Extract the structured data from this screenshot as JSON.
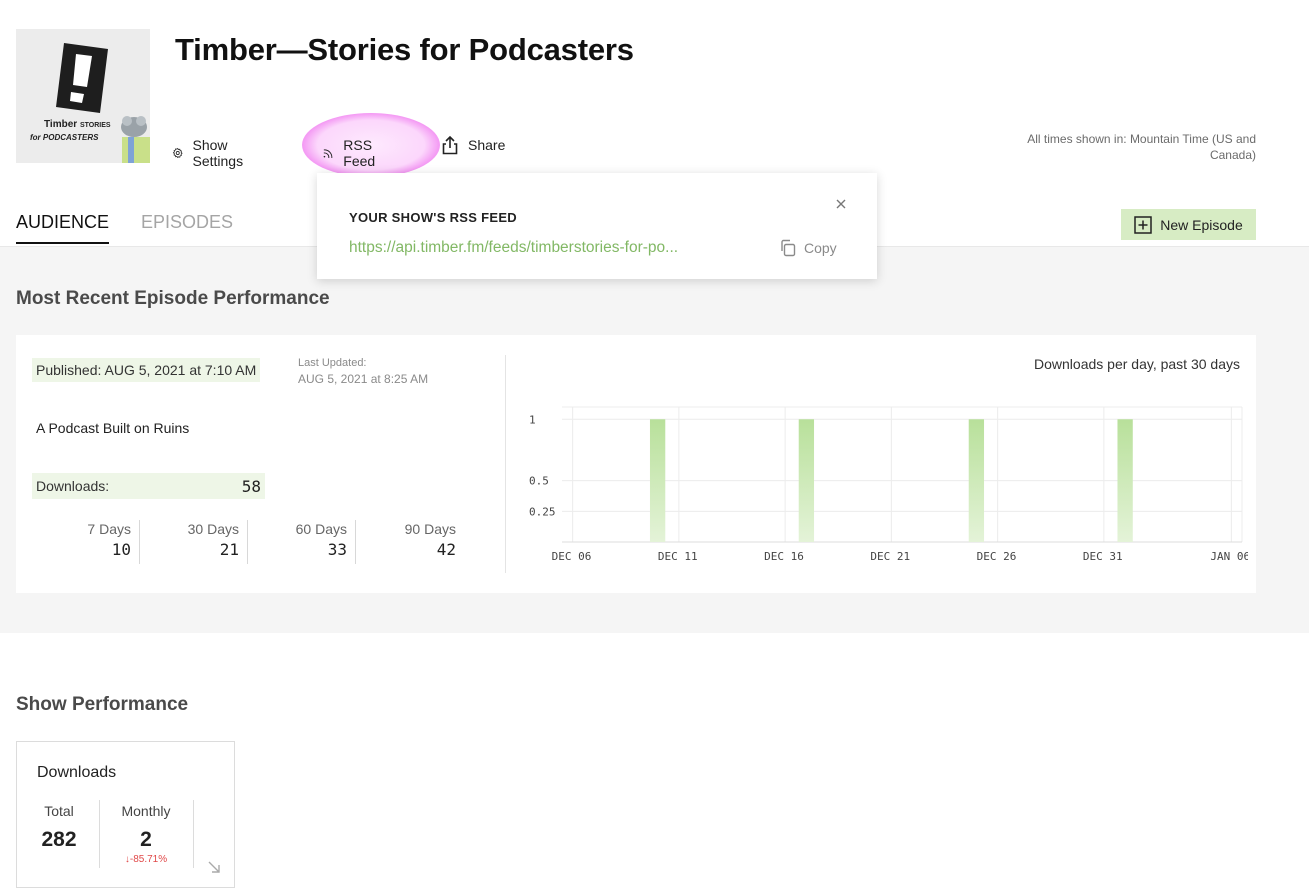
{
  "header": {
    "show_title": "Timber—Stories for Podcasters",
    "cover": {
      "brand_line1": "Timber",
      "brand_line1b": "STORIES",
      "brand_line2": "for PODCASTERS"
    },
    "actions": [
      {
        "label": "Show Settings",
        "icon": "gear-icon"
      },
      {
        "label": "RSS Feed",
        "icon": "rss-icon"
      },
      {
        "label": "Share",
        "icon": "share-icon"
      }
    ],
    "timezone": "All times shown in: Mountain Time (US and Canada)"
  },
  "tabs": [
    {
      "label": "AUDIENCE",
      "active": true
    },
    {
      "label": "EPISODES",
      "active": false
    }
  ],
  "new_episode_label": "New Episode",
  "rss_popover": {
    "title": "YOUR SHOW'S RSS FEED",
    "url": "https://api.timber.fm/feeds/timberstories-for-po...",
    "copy_label": "Copy"
  },
  "recent": {
    "section_title": "Most Recent Episode Performance",
    "published": "Published: AUG 5, 2021 at 7:10 AM",
    "last_updated_label": "Last Updated:",
    "last_updated_value": "AUG 5, 2021 at 8:25 AM",
    "episode_title": "A Podcast Built on Ruins",
    "downloads_label": "Downloads:",
    "downloads_value": "58",
    "periods": [
      {
        "label": "7 Days",
        "value": "10"
      },
      {
        "label": "30 Days",
        "value": "21"
      },
      {
        "label": "60 Days",
        "value": "33"
      },
      {
        "label": "90 Days",
        "value": "42"
      }
    ]
  },
  "chart_data": {
    "type": "bar",
    "title": "Downloads per day, past 30 days",
    "x_start": "2020-12-06",
    "xtick_labels": [
      "DEC 06",
      "DEC 11",
      "DEC 16",
      "DEC 21",
      "DEC 26",
      "DEC 31",
      "JAN 06"
    ],
    "ytick_labels": [
      "1",
      "0.5",
      "0.25"
    ],
    "ylim": [
      0,
      1.1
    ],
    "bars": [
      {
        "date": "DEC 10",
        "value": 1
      },
      {
        "date": "DEC 17",
        "value": 1
      },
      {
        "date": "DEC 25",
        "value": 1
      },
      {
        "date": "JAN 01",
        "value": 1
      }
    ],
    "bar_color": "#b8e09a",
    "grid": true
  },
  "show_performance": {
    "section_title": "Show Performance",
    "card_title": "Downloads",
    "total_label": "Total",
    "total_value": "282",
    "monthly_label": "Monthly",
    "monthly_value": "2",
    "monthly_change": "↓-85.71%"
  },
  "colors": {
    "accent_green": "#82b865",
    "highlight_green": "#eef6e7",
    "button_green": "#d7ecc4",
    "negative_red": "#e04848"
  }
}
